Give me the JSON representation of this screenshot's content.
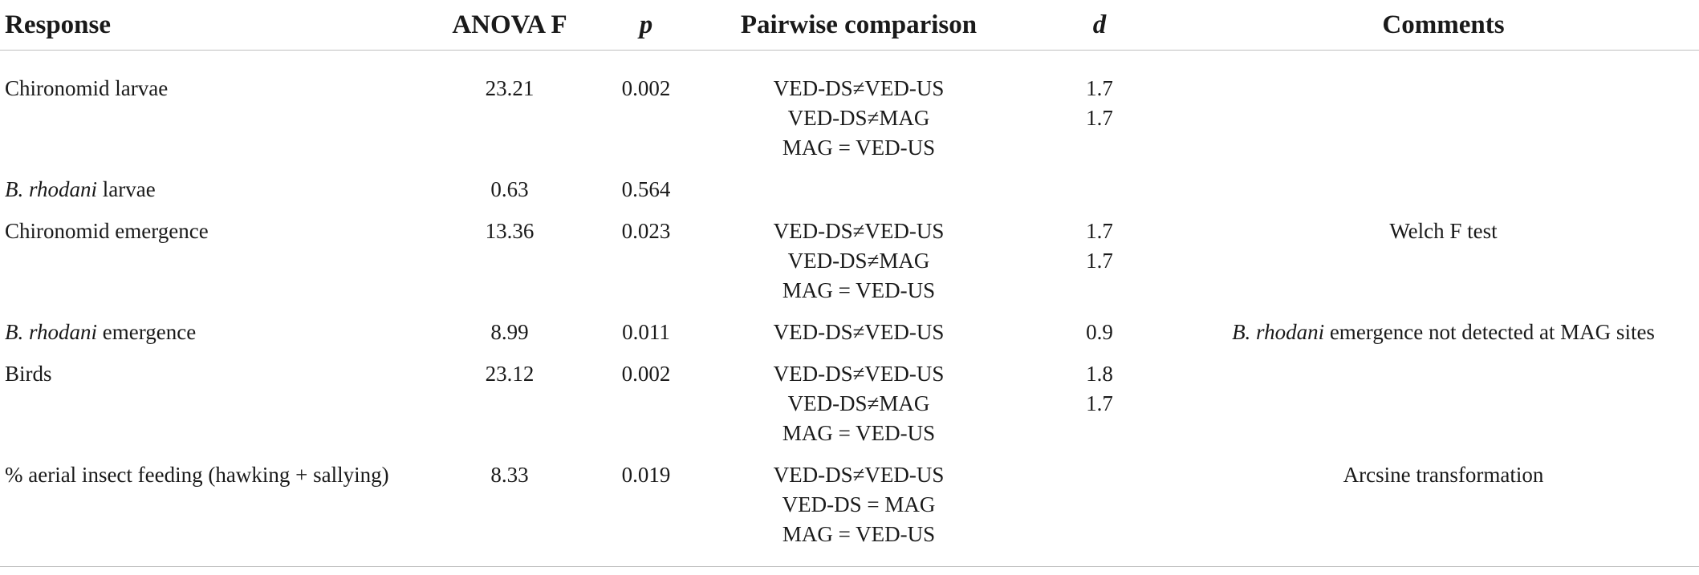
{
  "table": {
    "headers": {
      "response": "Response",
      "anova_f": "ANOVA F",
      "p": "p",
      "pairwise": "Pairwise comparison",
      "d": "d",
      "comments": "Comments"
    },
    "rows": [
      {
        "response_italic": "",
        "response_text": "Chironomid larvae",
        "anova_f": "23.21",
        "p": "0.002",
        "pairwise": [
          "VED-DS≠VED-US",
          "VED-DS≠MAG",
          "MAG = VED-US"
        ],
        "d": [
          "1.7",
          "1.7"
        ],
        "comment_italic": "",
        "comment_text": ""
      },
      {
        "response_italic": "B. rhodani",
        "response_text": " larvae",
        "anova_f": "0.63",
        "p": "0.564",
        "pairwise": [],
        "d": [],
        "comment_italic": "",
        "comment_text": ""
      },
      {
        "response_italic": "",
        "response_text": "Chironomid emergence",
        "anova_f": "13.36",
        "p": "0.023",
        "pairwise": [
          "VED-DS≠VED-US",
          "VED-DS≠MAG",
          "MAG = VED-US"
        ],
        "d": [
          "1.7",
          "1.7"
        ],
        "comment_italic": "",
        "comment_text": "Welch F test"
      },
      {
        "response_italic": "B. rhodani",
        "response_text": " emergence",
        "anova_f": "8.99",
        "p": "0.011",
        "pairwise": [
          "VED-DS≠VED-US"
        ],
        "d": [
          "0.9"
        ],
        "comment_italic": "B. rhodani",
        "comment_text": " emergence not detected at MAG sites"
      },
      {
        "response_italic": "",
        "response_text": "Birds",
        "anova_f": "23.12",
        "p": "0.002",
        "pairwise": [
          "VED-DS≠VED-US",
          "VED-DS≠MAG",
          "MAG = VED-US"
        ],
        "d": [
          "1.8",
          "1.7"
        ],
        "comment_italic": "",
        "comment_text": ""
      },
      {
        "response_italic": "",
        "response_text": "% aerial insect feeding (hawking + sallying)",
        "anova_f": "8.33",
        "p": "0.019",
        "pairwise": [
          "VED-DS≠VED-US",
          "VED-DS = MAG",
          "MAG = VED-US"
        ],
        "d": [],
        "comment_italic": "",
        "comment_text": "Arcsine transformation"
      }
    ]
  }
}
